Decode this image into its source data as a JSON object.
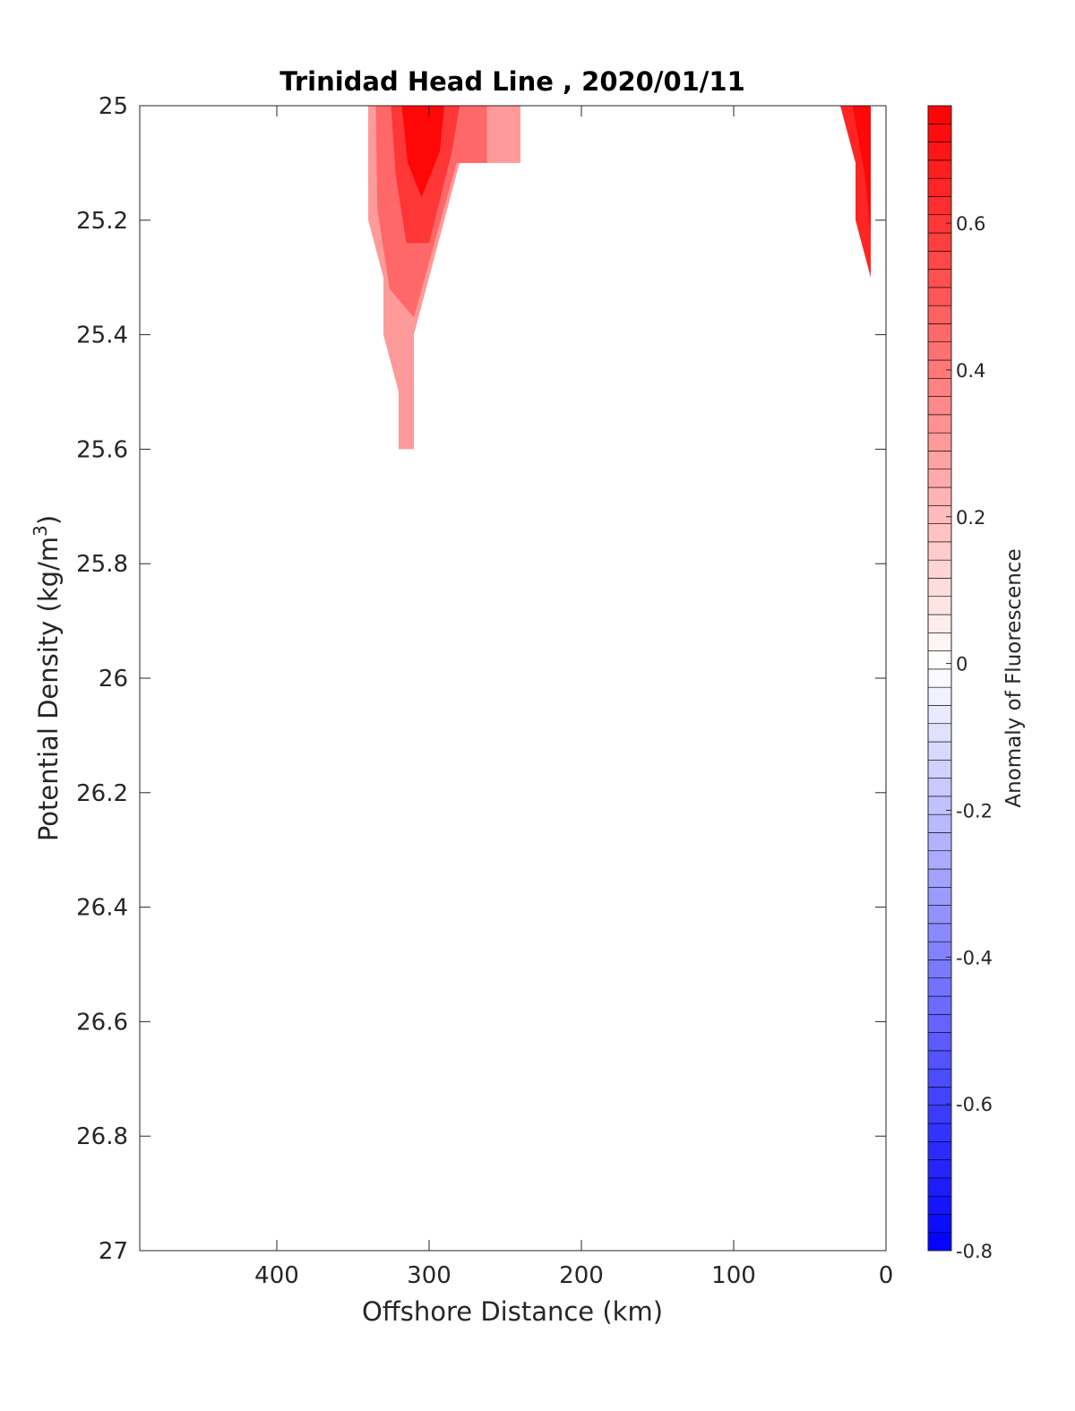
{
  "chart_data": {
    "type": "heatmap",
    "title": "Trinidad Head Line , 2020/01/11",
    "xlabel": "Offshore Distance (km)",
    "ylabel": "Potential Density (kg/m",
    "ylabel_superscript": "3",
    "ylabel_close": ")",
    "xlim": [
      490,
      0
    ],
    "ylim": [
      25,
      27
    ],
    "x_reversed": true,
    "y_reversed": true,
    "x_ticks": [
      400,
      300,
      200,
      100,
      0
    ],
    "y_ticks": [
      25,
      25.2,
      25.4,
      25.6,
      25.8,
      26,
      26.2,
      26.4,
      26.6,
      26.8,
      27
    ],
    "y_tick_labels": [
      "25",
      "25.2",
      "25.4",
      "25.6",
      "25.8",
      "26",
      "26.2",
      "26.4",
      "26.6",
      "26.8",
      "27"
    ],
    "grid": false,
    "colorbar": {
      "label": "Anomaly of Fluorescence",
      "range": [
        -0.8,
        0.76
      ],
      "ticks": [
        -0.8,
        -0.6,
        -0.4,
        -0.2,
        0,
        0.2,
        0.4,
        0.6
      ],
      "tick_labels": [
        "-0.8",
        "-0.6",
        "-0.4",
        "-0.2",
        "0",
        "0.2",
        "0.4",
        "0.6"
      ],
      "levels": 63,
      "colormap": "blue-white-red",
      "low_color": "#0000ff",
      "mid_color": "#ffffff",
      "high_color": "#ff0000"
    },
    "regions": [
      {
        "name": "offshore patch outer",
        "value": 0.3,
        "outline": [
          [
            340,
            25.0
          ],
          [
            240,
            25.0
          ],
          [
            240,
            25.1
          ],
          [
            280,
            25.1
          ],
          [
            310,
            25.4
          ],
          [
            310,
            25.6
          ],
          [
            320,
            25.6
          ],
          [
            320,
            25.5
          ],
          [
            330,
            25.4
          ],
          [
            330,
            25.3
          ],
          [
            340,
            25.2
          ]
        ]
      },
      {
        "name": "offshore patch middle",
        "value": 0.45,
        "outline": [
          [
            335,
            25.0
          ],
          [
            262,
            25.0
          ],
          [
            262,
            25.1
          ],
          [
            282,
            25.1
          ],
          [
            310,
            25.37
          ],
          [
            326,
            25.32
          ],
          [
            334,
            25.18
          ]
        ]
      },
      {
        "name": "offshore patch inner",
        "value": 0.6,
        "outline": [
          [
            325,
            25.0
          ],
          [
            280,
            25.0
          ],
          [
            285,
            25.08
          ],
          [
            300,
            25.24
          ],
          [
            315,
            25.24
          ],
          [
            322,
            25.12
          ]
        ]
      },
      {
        "name": "offshore patch core",
        "value": 0.74,
        "outline": [
          [
            318,
            25.0
          ],
          [
            290,
            25.0
          ],
          [
            293,
            25.08
          ],
          [
            305,
            25.16
          ],
          [
            314,
            25.1
          ]
        ]
      },
      {
        "name": "nearshore patch outer",
        "value": 0.65,
        "outline": [
          [
            30,
            25.0
          ],
          [
            10,
            25.0
          ],
          [
            10,
            25.3
          ],
          [
            20,
            25.2
          ],
          [
            20,
            25.1
          ]
        ]
      },
      {
        "name": "nearshore patch core",
        "value": 0.74,
        "outline": [
          [
            22,
            25.0
          ],
          [
            10,
            25.0
          ],
          [
            10,
            25.22
          ],
          [
            14,
            25.12
          ]
        ]
      }
    ]
  }
}
